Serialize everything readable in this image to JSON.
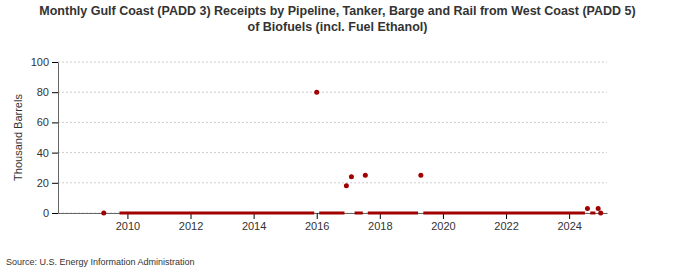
{
  "chart_data": {
    "type": "line",
    "title": "Monthly Gulf Coast (PADD 3) Receipts by Pipeline, Tanker, Barge and Rail from West Coast (PADD 5) of Biofuels (incl. Fuel Ethanol)",
    "y_label": "Thousand Barrels",
    "source": "Source: U.S. Energy Information Administration",
    "x": [
      2009.25,
      2009.5,
      2009.75,
      2015.92,
      2015.96,
      2016.0,
      2016.04,
      2016.08,
      2016.88,
      2016.9,
      2016.94,
      2016.98,
      2017.02,
      2017.1,
      2017.14,
      2017.2,
      2017.46,
      2017.5,
      2017.54,
      2017.58,
      2017.62,
      2019.21,
      2019.25,
      2019.3,
      2019.33,
      2019.38,
      2024.5,
      2024.54,
      2024.58,
      2024.62,
      2024.67,
      2024.83,
      2024.85,
      2024.92,
      2024.96,
      2025.0
    ],
    "values": [
      0,
      null,
      0,
      0,
      null,
      80,
      null,
      0,
      0,
      null,
      18,
      null,
      null,
      24,
      null,
      0,
      0,
      null,
      25,
      null,
      0,
      0,
      null,
      25,
      null,
      0,
      0,
      null,
      3,
      null,
      0,
      0,
      null,
      3,
      null,
      0
    ],
    "color": "#a00000",
    "marker": "circle",
    "xlim": [
      2007.8,
      2025.2
    ],
    "xticks": [
      2010,
      2012,
      2014,
      2016,
      2018,
      2020,
      2022,
      2024
    ],
    "ylim": [
      0,
      100
    ],
    "yticks": [
      0,
      20,
      40,
      60,
      80,
      100
    ],
    "grid": true
  }
}
